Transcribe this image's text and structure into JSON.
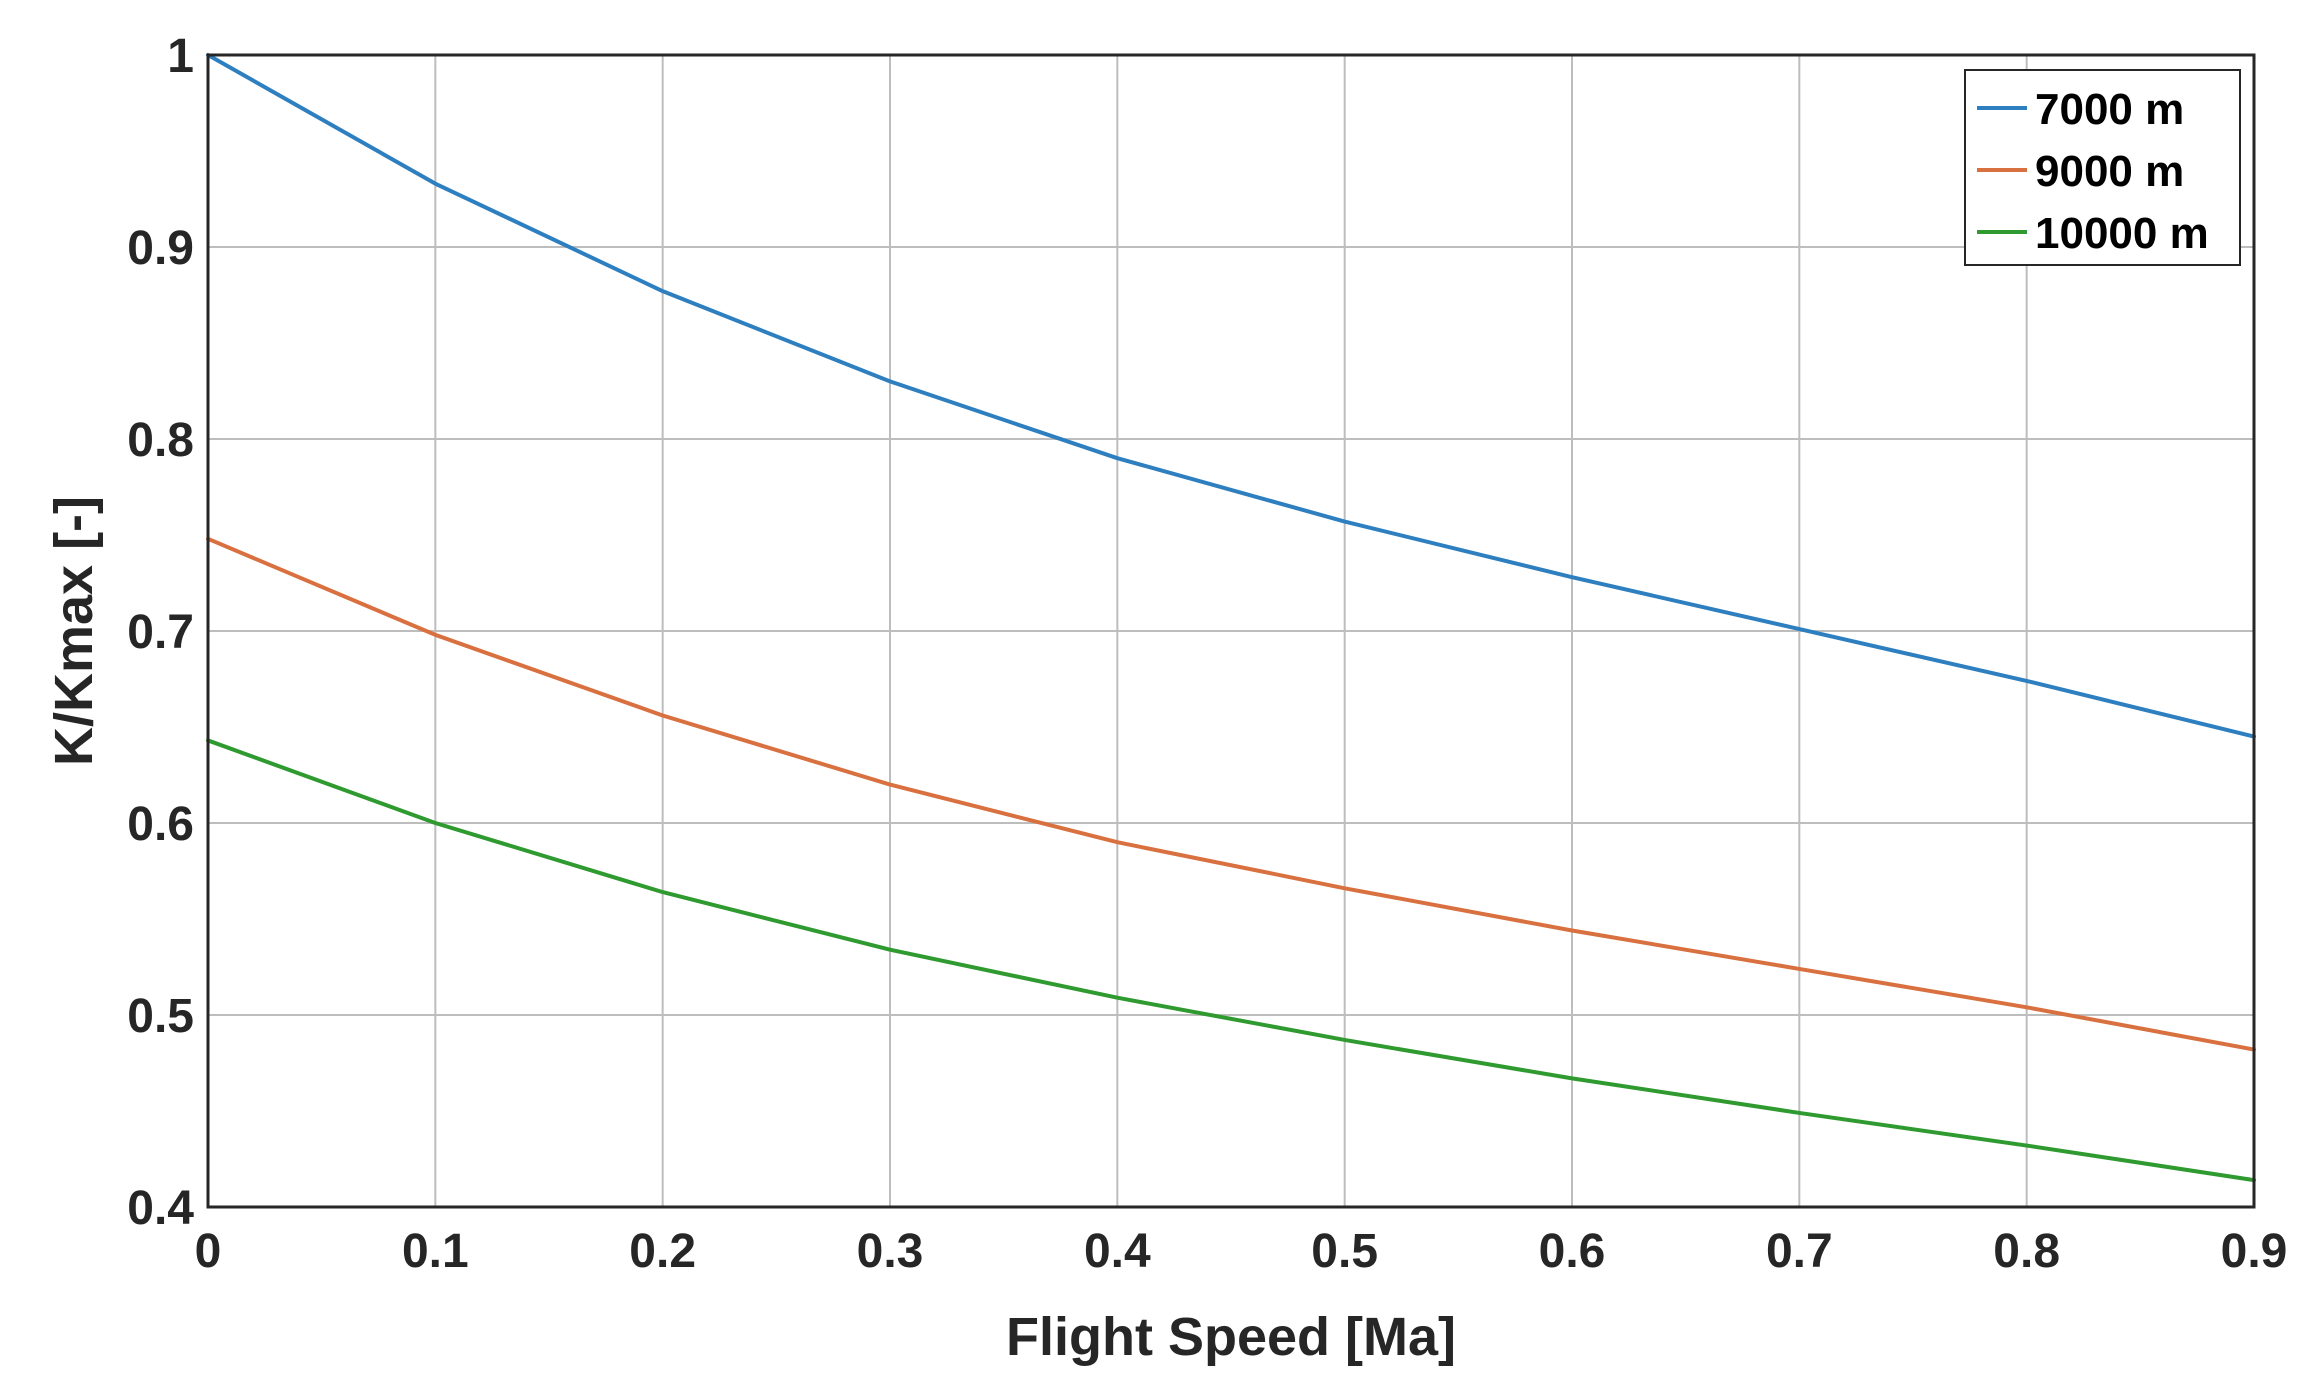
{
  "chart_data": {
    "type": "line",
    "title": "",
    "xlabel": "Flight Speed [Ma]",
    "ylabel": "K/Kmax [-]",
    "xlim": [
      0,
      0.9
    ],
    "ylim": [
      0.4,
      1.0
    ],
    "grid": true,
    "legend_position": "top-right",
    "x": [
      0,
      0.1,
      0.2,
      0.3,
      0.4,
      0.5,
      0.6,
      0.7,
      0.8,
      0.9
    ],
    "x_ticks": [
      "0",
      "0.1",
      "0.2",
      "0.3",
      "0.4",
      "0.5",
      "0.6",
      "0.7",
      "0.8",
      "0.9"
    ],
    "y_ticks_values": [
      0.4,
      0.5,
      0.6,
      0.7,
      0.8,
      0.9,
      1.0
    ],
    "y_ticks": [
      "0.4",
      "0.5",
      "0.6",
      "0.7",
      "0.8",
      "0.9",
      "1"
    ],
    "series": [
      {
        "name": "7000 m",
        "color": "#2e7fc0",
        "values": [
          1.0,
          0.933,
          0.877,
          0.83,
          0.79,
          0.757,
          0.728,
          0.701,
          0.674,
          0.645
        ]
      },
      {
        "name": "9000 m",
        "color": "#d9703f",
        "values": [
          0.748,
          0.698,
          0.656,
          0.62,
          0.59,
          0.566,
          0.544,
          0.524,
          0.504,
          0.482
        ]
      },
      {
        "name": "10000 m",
        "color": "#2f9a2f",
        "values": [
          0.643,
          0.6,
          0.564,
          0.534,
          0.509,
          0.487,
          0.467,
          0.449,
          0.432,
          0.414
        ]
      }
    ]
  }
}
